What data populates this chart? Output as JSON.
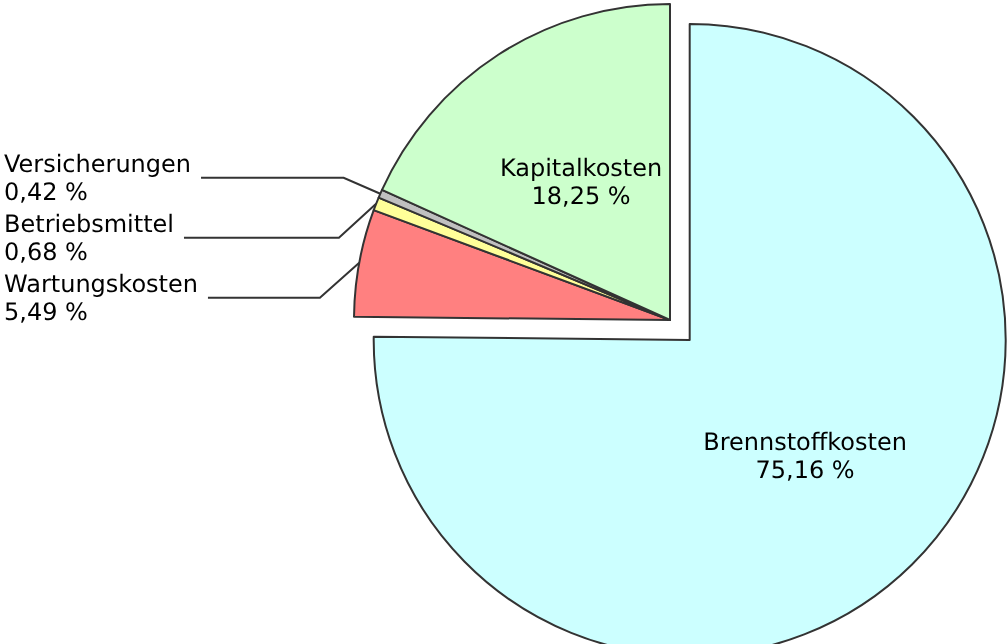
{
  "chart_data": {
    "type": "pie",
    "categories": [
      "Brennstoffkosten",
      "Wartungskosten",
      "Betriebsmittel",
      "Versicherungen",
      "Kapitalkosten"
    ],
    "values": [
      75.16,
      5.49,
      0.68,
      0.42,
      18.25
    ],
    "colors": [
      "#ccffff",
      "#ff8080",
      "#ffff99",
      "#c0c0c0",
      "#ccffcc"
    ],
    "value_labels": [
      "75,16 %",
      "5,49 %",
      "0,68 %",
      "0,42 %",
      "18,25 %"
    ],
    "legend": false
  }
}
